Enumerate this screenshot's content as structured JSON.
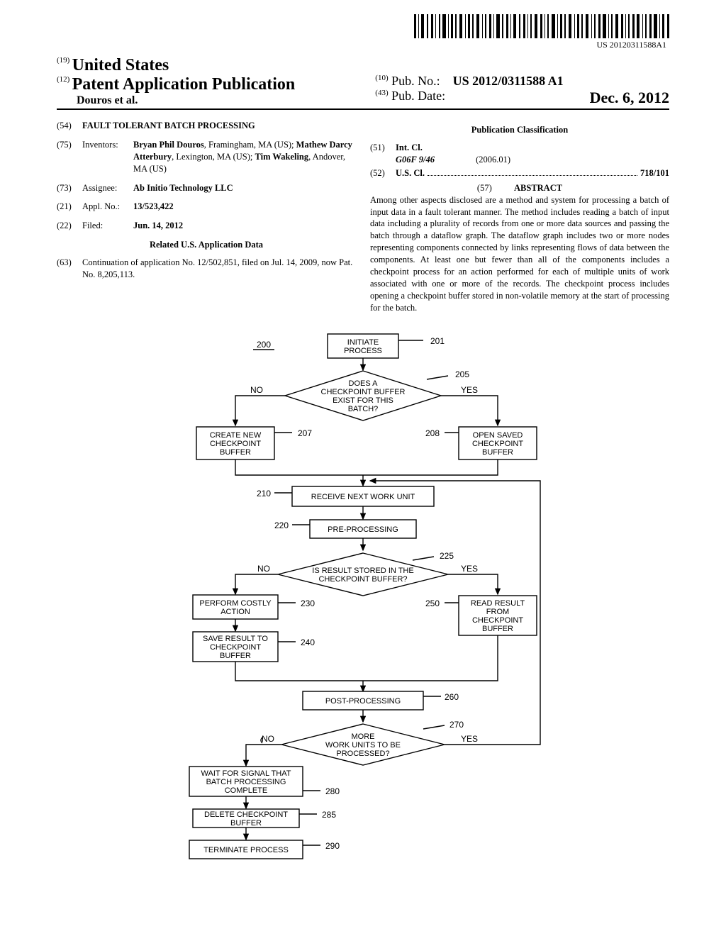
{
  "barcode_text": "US 20120311588A1",
  "header": {
    "code19": "(19)",
    "country": "United States",
    "code12": "(12)",
    "pub_type": "Patent Application Publication",
    "authors_line": "Douros et al.",
    "code10": "(10)",
    "pubno_label": "Pub. No.:",
    "pubno_value": "US 2012/0311588 A1",
    "code43": "(43)",
    "pubdate_label": "Pub. Date:",
    "pubdate_value": "Dec. 6, 2012"
  },
  "left": {
    "title_code": "(54)",
    "title": "FAULT TOLERANT BATCH PROCESSING",
    "inventors_code": "(75)",
    "inventors_label": "Inventors:",
    "inventors_html": "Bryan Phil Douros, Framingham, MA (US); Mathew Darcy Atterbury, Lexington, MA (US); Tim Wakeling, Andover, MA (US)",
    "assignee_code": "(73)",
    "assignee_label": "Assignee:",
    "assignee_value": "Ab Initio Technology LLC",
    "applno_code": "(21)",
    "applno_label": "Appl. No.:",
    "applno_value": "13/523,422",
    "filed_code": "(22)",
    "filed_label": "Filed:",
    "filed_value": "Jun. 14, 2012",
    "related_heading": "Related U.S. Application Data",
    "related_code": "(63)",
    "related_text": "Continuation of application No. 12/502,851, filed on Jul. 14, 2009, now Pat. No. 8,205,113."
  },
  "right": {
    "classification_heading": "Publication Classification",
    "intcl_code": "(51)",
    "intcl_label": "Int. Cl.",
    "intcl_class": "G06F 9/46",
    "intcl_date": "(2006.01)",
    "uscl_code": "(52)",
    "uscl_label": "U.S. Cl.",
    "uscl_value": "718/101",
    "abstract_code": "(57)",
    "abstract_label": "ABSTRACT",
    "abstract_text": "Among other aspects disclosed are a method and system for processing a batch of input data in a fault tolerant manner. The method includes reading a batch of input data including a plurality of records from one or more data sources and passing the batch through a dataflow graph. The dataflow graph includes two or more nodes representing components connected by links representing flows of data between the components. At least one but fewer than all of the components includes a checkpoint process for an action performed for each of multiple units of work associated with one or more of the records. The checkpoint process includes opening a checkpoint buffer stored in non-volatile memory at the start of processing for the batch."
  },
  "flowchart": {
    "ref_main": "200",
    "nodes": {
      "n201": {
        "label": "INITIATE\nPROCESS",
        "ref": "201"
      },
      "n205": {
        "label": "DOES A\nCHECKPOINT BUFFER\nEXIST FOR THIS\nBATCH?",
        "ref": "205"
      },
      "n207": {
        "label": "CREATE NEW\nCHECKPOINT\nBUFFER",
        "ref": "207"
      },
      "n208": {
        "label": "OPEN SAVED\nCHECKPOINT\nBUFFER",
        "ref": "208"
      },
      "n210": {
        "label": "RECEIVE NEXT WORK UNIT",
        "ref": "210"
      },
      "n220": {
        "label": "PRE-PROCESSING",
        "ref": "220"
      },
      "n225": {
        "label": "IS RESULT STORED IN THE\nCHECKPOINT BUFFER?",
        "ref": "225"
      },
      "n230": {
        "label": "PERFORM COSTLY\nACTION",
        "ref": "230"
      },
      "n240": {
        "label": "SAVE RESULT TO\nCHECKPOINT\nBUFFER",
        "ref": "240"
      },
      "n250": {
        "label": "READ RESULT\nFROM\nCHECKPOINT\nBUFFER",
        "ref": "250"
      },
      "n260": {
        "label": "POST-PROCESSING",
        "ref": "260"
      },
      "n270": {
        "label": "MORE\nWORK UNITS TO BE\nPROCESSED?",
        "ref": "270"
      },
      "n280": {
        "label": "WAIT FOR SIGNAL THAT\nBATCH PROCESSING\nCOMPLETE",
        "ref": "280"
      },
      "n285": {
        "label": "DELETE CHECKPOINT\nBUFFER",
        "ref": "285"
      },
      "n290": {
        "label": "TERMINATE PROCESS",
        "ref": "290"
      }
    },
    "edge_labels": {
      "yes": "YES",
      "no": "NO"
    },
    "stroke": "#000000",
    "bg": "#ffffff"
  }
}
